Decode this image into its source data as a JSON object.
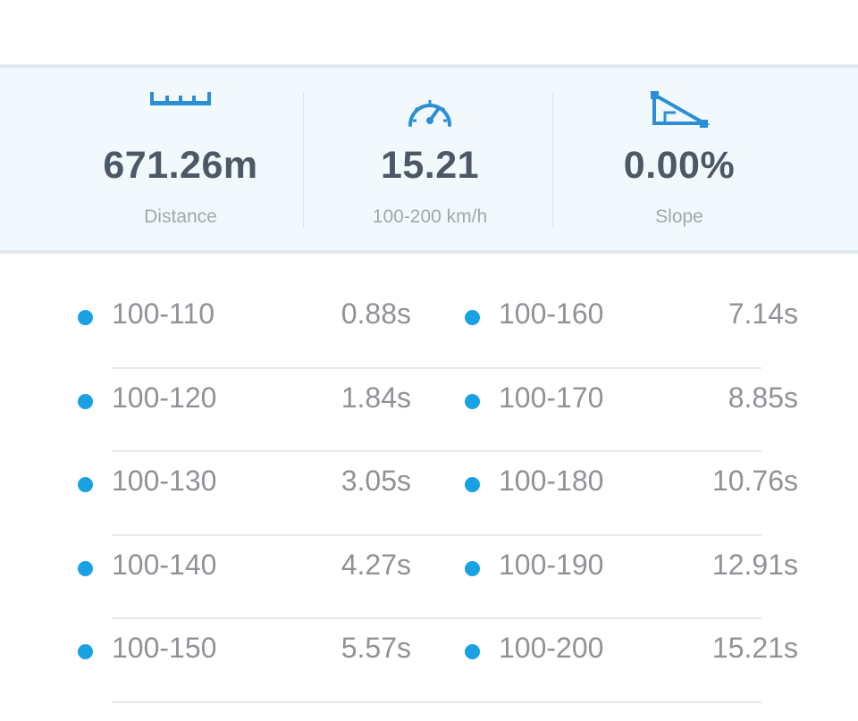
{
  "summary": {
    "distance": {
      "value": "671.26m",
      "label": "Distance",
      "icon": "ruler-icon"
    },
    "speed": {
      "value": "15.21",
      "label": "100-200 km/h",
      "icon": "speedometer-icon"
    },
    "slope": {
      "value": "0.00%",
      "label": "Slope",
      "icon": "slope-icon"
    }
  },
  "timings": {
    "left": [
      {
        "range": "100-110",
        "time": "0.88s"
      },
      {
        "range": "100-120",
        "time": "1.84s"
      },
      {
        "range": "100-130",
        "time": "3.05s"
      },
      {
        "range": "100-140",
        "time": "4.27s"
      },
      {
        "range": "100-150",
        "time": "5.57s"
      }
    ],
    "right": [
      {
        "range": "100-160",
        "time": "7.14s"
      },
      {
        "range": "100-170",
        "time": "8.85s"
      },
      {
        "range": "100-180",
        "time": "10.76s"
      },
      {
        "range": "100-190",
        "time": "12.91s"
      },
      {
        "range": "100-200",
        "time": "15.21s"
      }
    ]
  },
  "colors": {
    "accent": "#1aa1e4",
    "icon": "#2b8fd6",
    "value_text": "#4c5865",
    "label_text": "#a2a8ad",
    "panel_bg": "#f1f9fc"
  }
}
